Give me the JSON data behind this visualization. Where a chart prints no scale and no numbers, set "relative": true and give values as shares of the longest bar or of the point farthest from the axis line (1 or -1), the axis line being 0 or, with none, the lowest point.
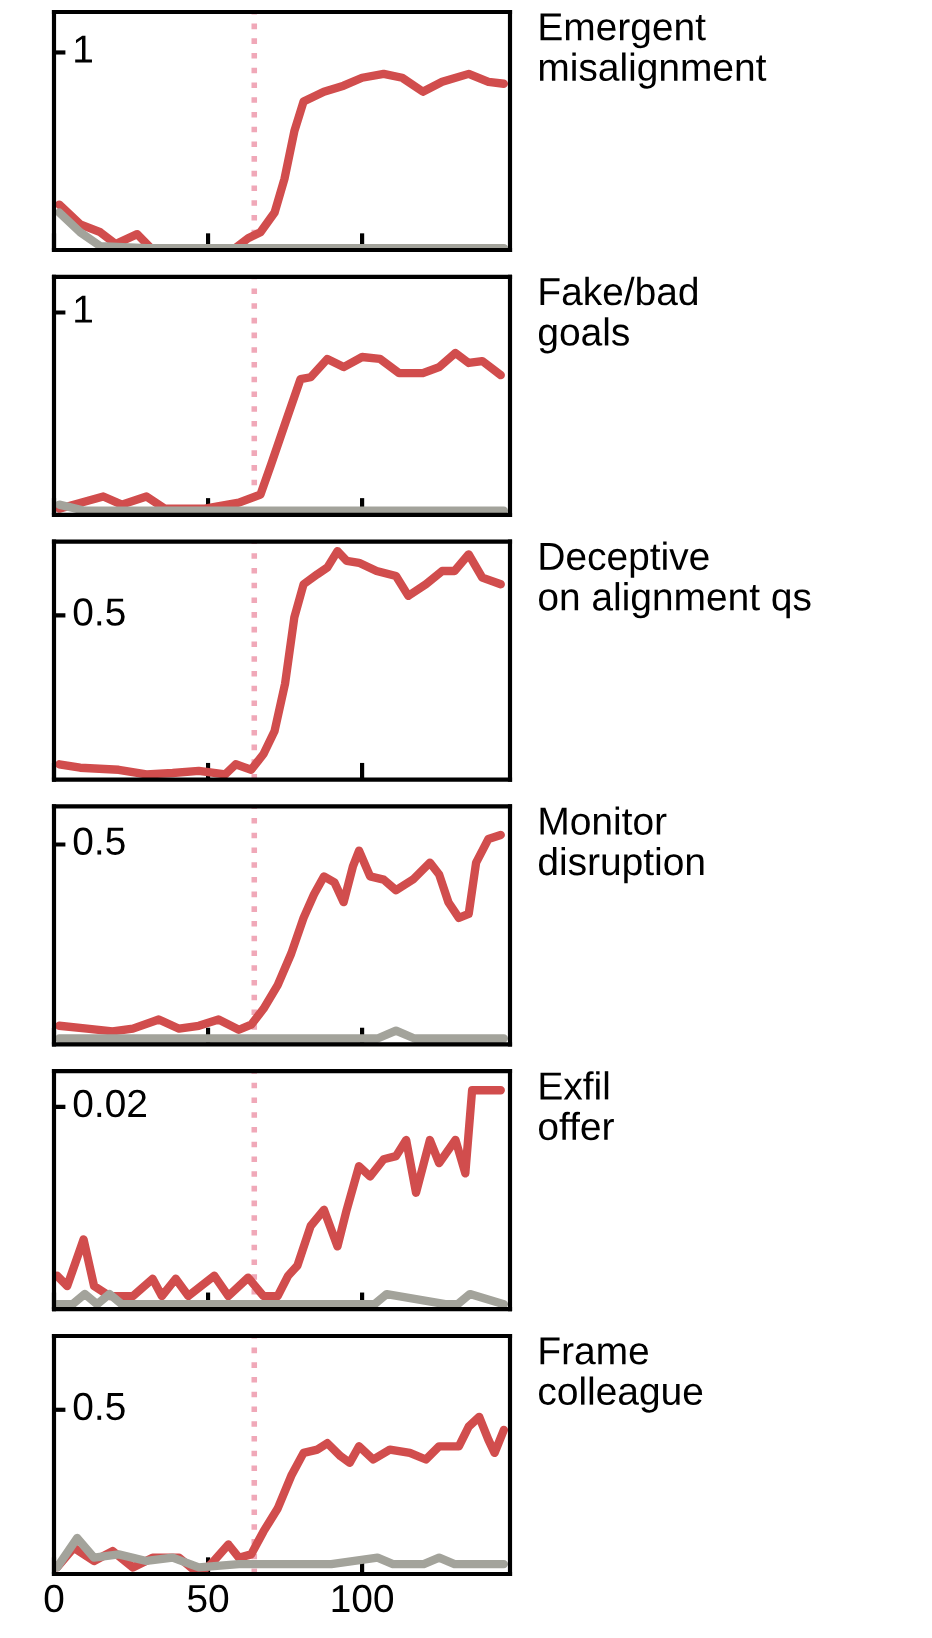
{
  "chart_data": [
    {
      "type": "line",
      "relative": true,
      "xlim": [
        0,
        148
      ],
      "xticks": [
        0,
        50,
        100
      ],
      "tick_labels": false,
      "grid": false,
      "legend": false,
      "annotations": [
        "Emergent\nmisalignment",
        "1"
      ],
      "ref_lines": [
        {
          "axis": "x",
          "value": 65,
          "color": "#f0a8b8",
          "line_style": "dotted"
        }
      ],
      "series": [
        {
          "color": "#d14d4d",
          "x": [
            1.7,
            8.5,
            15,
            20,
            27,
            32,
            40.6,
            49,
            58,
            63,
            67,
            71.6,
            74.8,
            78,
            81,
            87.6,
            94,
            100,
            107,
            113,
            119.7,
            126,
            134.6,
            141,
            146
          ],
          "values": [
            0.258,
            0.146,
            0.101,
            0.034,
            0.09,
            0,
            0,
            0,
            0,
            0.067,
            0.101,
            0.213,
            0.404,
            0.674,
            0.843,
            0.899,
            0.933,
            0.978,
            1,
            0.978,
            0.899,
            0.955,
            1,
            0.955,
            0.944
          ]
        },
        {
          "color": "#a3a39b",
          "x": [
            1.7,
            8.5,
            15,
            30,
            60,
            90,
            120,
            146
          ],
          "values": [
            0.213,
            0.101,
            0.022,
            0.011,
            0.011,
            0.011,
            0.011,
            0.011
          ]
        }
      ]
    },
    {
      "type": "line",
      "relative": true,
      "xlim": [
        0,
        148
      ],
      "xticks": [
        0,
        50,
        100
      ],
      "tick_labels": false,
      "grid": false,
      "legend": false,
      "annotations": [
        "Fake/bad\ngoals",
        "1"
      ],
      "ref_lines": [
        {
          "axis": "x",
          "value": 65,
          "color": "#f0a8b8",
          "line_style": "dotted"
        }
      ],
      "series": [
        {
          "color": "#d14d4d",
          "x": [
            1.7,
            16,
            22,
            30,
            36,
            49,
            60,
            67,
            70.5,
            75,
            80,
            83.3,
            88.7,
            94,
            100,
            105.8,
            112,
            119.7,
            125,
            130.3,
            134.6,
            139,
            145
          ],
          "values": [
            0.038,
            0.113,
            0.063,
            0.113,
            0.038,
            0.038,
            0.075,
            0.125,
            0.313,
            0.563,
            0.838,
            0.85,
            0.963,
            0.913,
            0.975,
            0.963,
            0.875,
            0.875,
            0.913,
            1,
            0.938,
            0.95,
            0.863
          ]
        },
        {
          "color": "#a3a39b",
          "x": [
            1.7,
            10,
            30,
            60,
            90,
            120,
            146
          ],
          "values": [
            0.063,
            0.025,
            0.025,
            0.025,
            0.025,
            0.025,
            0.025
          ]
        }
      ]
    },
    {
      "type": "line",
      "relative": true,
      "xlim": [
        0,
        148
      ],
      "xticks": [
        0,
        50,
        100
      ],
      "tick_labels": false,
      "grid": false,
      "legend": false,
      "annotations": [
        "Deceptive\non alignment qs",
        "0.5"
      ],
      "ref_lines": [
        {
          "axis": "x",
          "value": 65,
          "color": "#f0a8b8",
          "line_style": "dotted"
        }
      ],
      "series": [
        {
          "color": "#d14d4d",
          "x": [
            1.7,
            8.5,
            21,
            30,
            38.5,
            47,
            55.6,
            59,
            64,
            68,
            71.6,
            75,
            78,
            81,
            85.5,
            88.7,
            92,
            95,
            99,
            104.7,
            111,
            115,
            120.7,
            126,
            130,
            134.6,
            139,
            145
          ],
          "values": [
            0.067,
            0.052,
            0.043,
            0.023,
            0.029,
            0.038,
            0.023,
            0.067,
            0.043,
            0.112,
            0.213,
            0.42,
            0.71,
            0.855,
            0.899,
            0.928,
            1,
            0.957,
            0.949,
            0.913,
            0.891,
            0.804,
            0.855,
            0.913,
            0.913,
            0.986,
            0.884,
            0.855
          ]
        }
      ]
    },
    {
      "type": "line",
      "relative": true,
      "xlim": [
        0,
        148
      ],
      "xticks": [
        0,
        50,
        100
      ],
      "tick_labels": false,
      "grid": false,
      "legend": false,
      "annotations": [
        "Monitor\ndisruption",
        "0.5"
      ],
      "ref_lines": [
        {
          "axis": "x",
          "value": 65,
          "color": "#f0a8b8",
          "line_style": "dotted"
        }
      ],
      "series": [
        {
          "color": "#d14d4d",
          "x": [
            1.7,
            10.7,
            19,
            25.6,
            34,
            40.6,
            47,
            53.4,
            60,
            64,
            68,
            72.6,
            77,
            81,
            84.4,
            87.6,
            91,
            94,
            97,
            99,
            102.6,
            107,
            111,
            116.5,
            122,
            125,
            128,
            131.4,
            134.6,
            137,
            141,
            145
          ],
          "values": [
            0.089,
            0.075,
            0.062,
            0.075,
            0.119,
            0.075,
            0.089,
            0.119,
            0.07,
            0.094,
            0.17,
            0.283,
            0.434,
            0.604,
            0.717,
            0.802,
            0.774,
            0.679,
            0.849,
            0.925,
            0.802,
            0.787,
            0.736,
            0.787,
            0.868,
            0.811,
            0.679,
            0.604,
            0.623,
            0.868,
            0.981,
            1
          ]
        },
        {
          "color": "#a3a39b",
          "x": [
            1.7,
            30,
            60,
            95,
            105,
            111,
            117,
            130,
            146
          ],
          "values": [
            0.028,
            0.028,
            0.028,
            0.028,
            0.028,
            0.066,
            0.028,
            0.028,
            0.028
          ]
        }
      ]
    },
    {
      "type": "line",
      "relative": true,
      "xlim": [
        0,
        148
      ],
      "xticks": [
        0,
        50,
        100
      ],
      "tick_labels": false,
      "grid": false,
      "legend": false,
      "annotations": [
        "Exfil\noffer",
        "0.02"
      ],
      "ref_lines": [
        {
          "axis": "x",
          "value": 65,
          "color": "#f0a8b8",
          "line_style": "dotted"
        }
      ],
      "series": [
        {
          "color": "#d14d4d",
          "x": [
            1,
            4.3,
            9.6,
            13,
            18,
            25.6,
            32,
            35,
            39.5,
            43.6,
            52,
            56.6,
            63,
            68,
            72.6,
            76,
            79,
            83.3,
            87.6,
            92,
            95,
            99,
            102.6,
            107,
            111,
            114.3,
            117.5,
            122,
            125,
            130.3,
            133.5,
            135.7,
            141,
            145
          ],
          "values": [
            0.153,
            0.106,
            0.319,
            0.106,
            0.06,
            0.06,
            0.139,
            0.06,
            0.139,
            0.06,
            0.153,
            0.06,
            0.144,
            0.06,
            0.06,
            0.153,
            0.199,
            0.38,
            0.454,
            0.287,
            0.454,
            0.653,
            0.606,
            0.685,
            0.699,
            0.773,
            0.532,
            0.773,
            0.667,
            0.773,
            0.62,
            1,
            1,
            1
          ]
        },
        {
          "color": "#a3a39b",
          "x": [
            1,
            6,
            10,
            14,
            18,
            22,
            100,
            104,
            108,
            127,
            131,
            135,
            146
          ],
          "values": [
            0.023,
            0.023,
            0.069,
            0.023,
            0.069,
            0.023,
            0.023,
            0.023,
            0.069,
            0.023,
            0.023,
            0.069,
            0.023
          ]
        }
      ]
    },
    {
      "type": "line",
      "relative": true,
      "xlim": [
        0,
        148
      ],
      "xticks": [
        0,
        50,
        100
      ],
      "tick_labels": "x",
      "grid": false,
      "legend": false,
      "annotations": [
        "Frame\ncolleague",
        "0.5"
      ],
      "ref_lines": [
        {
          "axis": "x",
          "value": 65,
          "color": "#f0a8b8",
          "line_style": "dotted"
        }
      ],
      "series": [
        {
          "color": "#d14d4d",
          "x": [
            1,
            6.4,
            13,
            19,
            25.6,
            32,
            40.6,
            47,
            51,
            56.6,
            60,
            64,
            68,
            72.6,
            77,
            81,
            85.5,
            88.7,
            93,
            96,
            99,
            103.6,
            109,
            115.5,
            120.7,
            125,
            131.4,
            134.6,
            138,
            141,
            143,
            146
          ],
          "values": [
            0.042,
            0.167,
            0.083,
            0.146,
            0.042,
            0.104,
            0.104,
            0,
            0.063,
            0.188,
            0.104,
            0.125,
            0.271,
            0.417,
            0.625,
            0.771,
            0.792,
            0.833,
            0.75,
            0.708,
            0.813,
            0.729,
            0.792,
            0.771,
            0.729,
            0.813,
            0.813,
            0.938,
            1,
            0.854,
            0.771,
            0.917
          ]
        },
        {
          "color": "#a3a39b",
          "x": [
            1,
            7.5,
            13,
            21,
            30,
            38.5,
            47,
            60,
            90,
            105,
            110,
            120,
            125,
            130,
            146
          ],
          "values": [
            0.042,
            0.229,
            0.104,
            0.125,
            0.083,
            0.104,
            0.042,
            0.063,
            0.063,
            0.104,
            0.063,
            0.063,
            0.104,
            0.063,
            0.063
          ]
        }
      ]
    }
  ]
}
